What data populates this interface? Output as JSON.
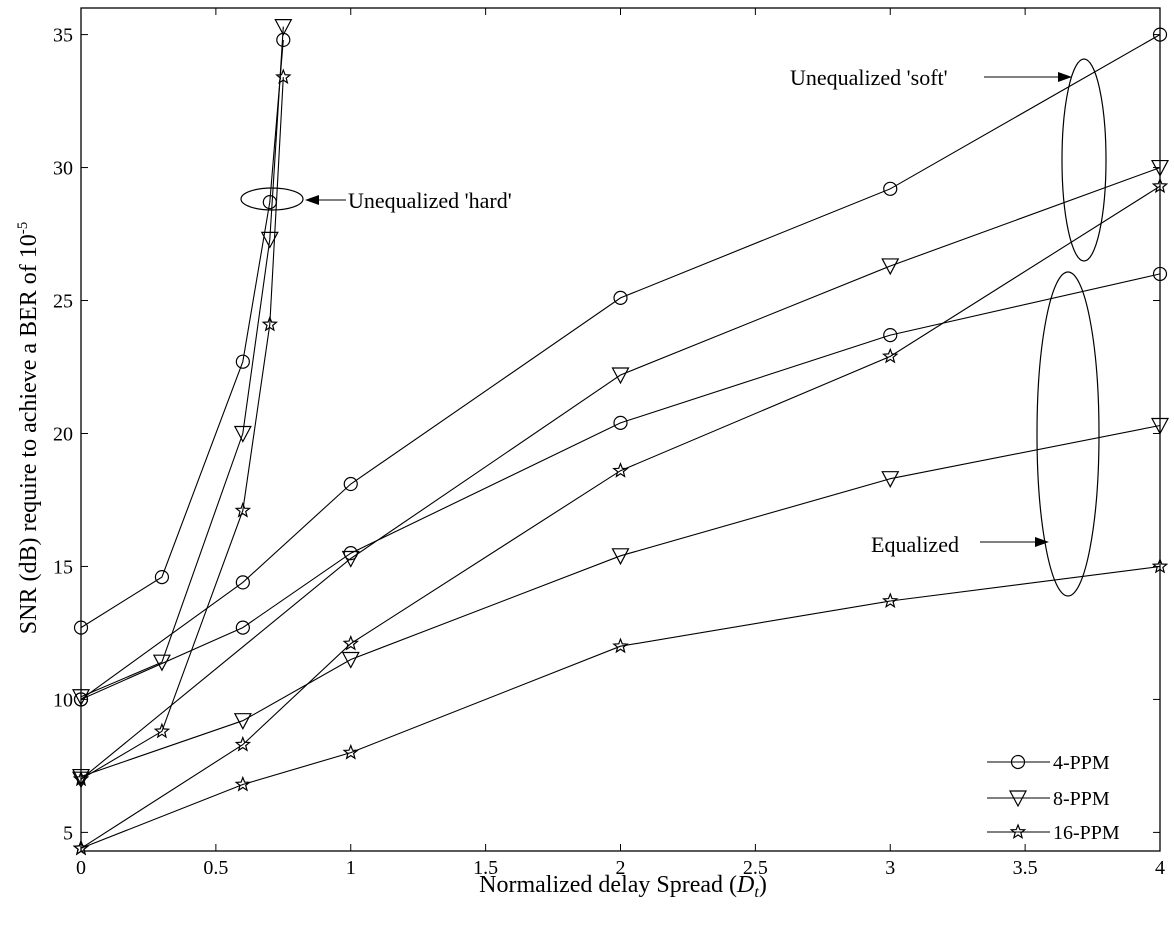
{
  "chart_data": {
    "type": "line",
    "title": "",
    "xlabel": "Normalized delay Spread (",
    "xlabel_symbol": "D",
    "xlabel_sub": "t",
    "xlabel_suffix": ")",
    "ylabel": "SNR (dB) require to achieve a BER of 10",
    "ylabel_sup": "-5",
    "xlim": [
      0,
      4
    ],
    "ylim": [
      4,
      36
    ],
    "xticks": [
      0,
      0.5,
      1,
      1.5,
      2,
      2.5,
      3,
      3.5,
      4
    ],
    "xtick_labels": [
      "0",
      "0.5",
      "1",
      "1.5",
      "2",
      "2.5",
      "3",
      "3.5",
      "4"
    ],
    "yticks": [
      5,
      10,
      15,
      20,
      25,
      30,
      35
    ],
    "ytick_labels": [
      "5",
      "10",
      "15",
      "20",
      "25",
      "30",
      "35"
    ],
    "grid": false,
    "legend_position": "bottom-right",
    "legend": [
      {
        "label": "4-PPM",
        "marker": "circle"
      },
      {
        "label": "8-PPM",
        "marker": "triangle-down"
      },
      {
        "label": "16-PPM",
        "marker": "star"
      }
    ],
    "series": [
      {
        "group": "unequalized-hard",
        "marker": "circle",
        "x": [
          0,
          0.3,
          0.6,
          0.7,
          0.75
        ],
        "y": [
          12.7,
          14.6,
          22.7,
          28.7,
          34.8
        ]
      },
      {
        "group": "unequalized-hard",
        "marker": "triangle-down",
        "x": [
          0,
          0.3,
          0.6,
          0.7,
          0.75
        ],
        "y": [
          10.1,
          11.4,
          20.0,
          27.3,
          35.3
        ]
      },
      {
        "group": "unequalized-hard",
        "marker": "star",
        "x": [
          0,
          0.3,
          0.6,
          0.7,
          0.75
        ],
        "y": [
          7.0,
          8.8,
          17.1,
          24.1,
          33.4
        ]
      },
      {
        "group": "unequalized-soft",
        "marker": "circle",
        "x": [
          0,
          0.6,
          1,
          2,
          3,
          4
        ],
        "y": [
          10.0,
          14.4,
          18.1,
          25.1,
          29.2,
          35.0
        ]
      },
      {
        "group": "unequalized-soft",
        "marker": "triangle-down",
        "x": [
          0,
          1,
          2,
          3,
          4
        ],
        "y": [
          7.0,
          15.3,
          22.2,
          26.3,
          30.0
        ]
      },
      {
        "group": "unequalized-soft",
        "marker": "star",
        "x": [
          0,
          0.6,
          1,
          2,
          3,
          4
        ],
        "y": [
          4.4,
          8.3,
          12.1,
          18.6,
          22.9,
          29.3
        ]
      },
      {
        "group": "equalized",
        "marker": "circle",
        "x": [
          0,
          0.6,
          1,
          2,
          3,
          4
        ],
        "y": [
          10.0,
          12.7,
          15.5,
          20.4,
          23.7,
          26.0
        ]
      },
      {
        "group": "equalized",
        "marker": "triangle-down",
        "x": [
          0,
          0.6,
          1,
          2,
          3,
          4
        ],
        "y": [
          7.1,
          9.2,
          11.5,
          15.4,
          18.3,
          20.3
        ]
      },
      {
        "group": "equalized",
        "marker": "star",
        "x": [
          0,
          0.6,
          1,
          2,
          3,
          4
        ],
        "y": [
          4.4,
          6.8,
          8.0,
          12.0,
          13.7,
          15.0
        ]
      }
    ],
    "annotations": [
      {
        "id": "hard",
        "text": "Unequalized 'hard'"
      },
      {
        "id": "soft",
        "text": "Unequalized 'soft'"
      },
      {
        "id": "equalized",
        "text": "Equalized"
      }
    ]
  }
}
